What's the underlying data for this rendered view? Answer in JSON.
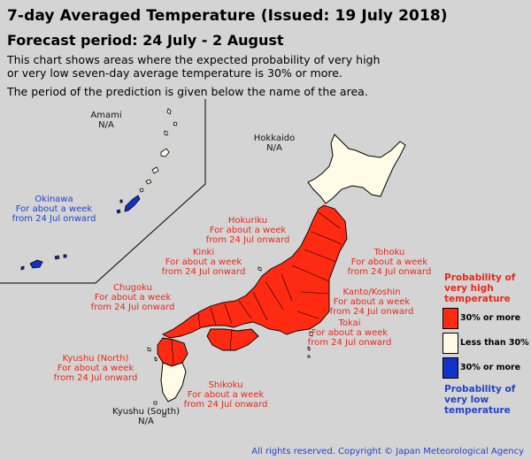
{
  "header": {
    "title": "7-day Averaged Temperature (Issued: 19 July 2018)",
    "period": "Forecast period: 24 July - 2 August",
    "desc_line1": "This chart shows areas where the expected probability of very high",
    "desc_line2": "or very low seven-day average temperature is 30% or more.",
    "desc_line3": "The period of the prediction is given below the name of the area."
  },
  "regions": [
    {
      "name": "Amami",
      "status": "N/A",
      "color": "black"
    },
    {
      "name": "Okinawa",
      "status": "For about a week\nfrom 24 Jul onward",
      "color": "blue"
    },
    {
      "name": "Hokkaido",
      "status": "N/A",
      "color": "black"
    },
    {
      "name": "Hokuriku",
      "status": "For about a week\nfrom 24 Jul onward",
      "color": "red"
    },
    {
      "name": "Tohoku",
      "status": "For about a week\nfrom 24 Jul onward",
      "color": "red"
    },
    {
      "name": "Kinki",
      "status": "For about a week\nfrom 24 Jul onward",
      "color": "red"
    },
    {
      "name": "Chugoku",
      "status": "For about a week\nfrom 24 Jul onward",
      "color": "red"
    },
    {
      "name": "Kanto/Koshin",
      "status": "For about a week\nfrom 24 Jul onward",
      "color": "red"
    },
    {
      "name": "Tokai",
      "status": "For about a week\nfrom 24 Jul onward",
      "color": "red"
    },
    {
      "name": "Kyushu (North)",
      "status": "For about a week\nfrom 24 Jul onward",
      "color": "red"
    },
    {
      "name": "Shikoku",
      "status": "For about a week\nfrom 24 Jul onward",
      "color": "red"
    },
    {
      "name": "Kyushu (South)",
      "status": "N/A",
      "color": "black"
    }
  ],
  "legend": {
    "high_title": "Probability of\nvery high\ntemperature",
    "high_label": "30% or more",
    "neutral_label": "Less than 30%",
    "low_label": "30% or more",
    "low_title": "Probability of\nvery low\ntemperature",
    "colors": {
      "high": "#ff2a12",
      "neutral": "#fffbe6",
      "low": "#1233c8"
    }
  },
  "copyright": "All rights reserved. Copyright © Japan Meteorological Agency"
}
